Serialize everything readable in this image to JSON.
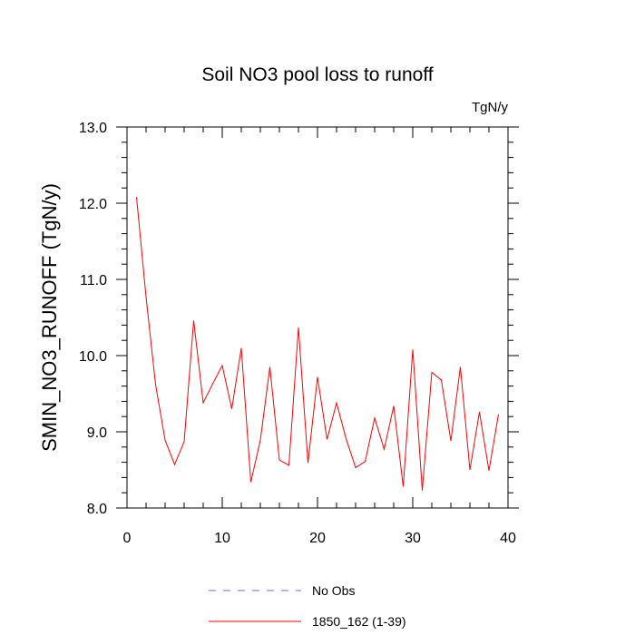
{
  "chart_data": {
    "type": "line",
    "title": "Soil NO3 pool loss to runoff",
    "units_label": "TgN/y",
    "xlabel": "",
    "ylabel": "SMIN_NO3_RUNOFF  (TgN/y)",
    "xlim": [
      0,
      40
    ],
    "ylim": [
      8.0,
      13.0
    ],
    "x_ticks": [
      0,
      10,
      20,
      30,
      40
    ],
    "x_tick_labels": [
      "0",
      "10",
      "20",
      "30",
      "40"
    ],
    "y_ticks": [
      8.0,
      9.0,
      10.0,
      11.0,
      12.0,
      13.0
    ],
    "y_tick_labels": [
      "8.0",
      "9.0",
      "10.0",
      "11.0",
      "12.0",
      "13.0"
    ],
    "grid": false,
    "legend_position": "bottom",
    "series": [
      {
        "name": "No Obs",
        "color": "#6b6bff",
        "style": "dashed",
        "x": [],
        "values": []
      },
      {
        "name": "1850_162 (1-39)",
        "color": "#ff0000",
        "style": "solid",
        "x": [
          1,
          2,
          3,
          4,
          5,
          6,
          7,
          8,
          9,
          10,
          11,
          12,
          13,
          14,
          15,
          16,
          17,
          18,
          19,
          20,
          21,
          22,
          23,
          24,
          25,
          26,
          27,
          28,
          29,
          30,
          31,
          32,
          33,
          34,
          35,
          36,
          37,
          38,
          39
        ],
        "values": [
          12.08,
          10.77,
          9.62,
          8.89,
          8.57,
          8.87,
          10.46,
          9.38,
          9.63,
          9.87,
          9.3,
          10.1,
          8.34,
          8.89,
          9.85,
          8.63,
          8.56,
          10.37,
          8.59,
          9.72,
          8.9,
          9.38,
          8.91,
          8.53,
          8.61,
          9.18,
          8.77,
          9.34,
          8.28,
          10.08,
          8.23,
          9.78,
          9.68,
          8.88,
          9.85,
          8.5,
          9.26,
          8.49,
          9.23
        ]
      }
    ]
  }
}
